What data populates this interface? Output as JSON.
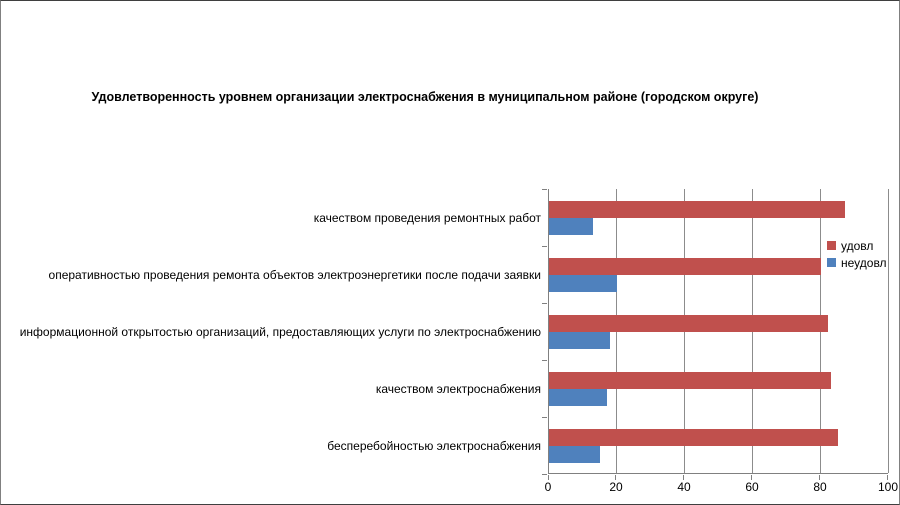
{
  "window": {
    "background": "#ffffff",
    "border_color": "#808080"
  },
  "chart_data": {
    "type": "bar",
    "orientation": "horizontal",
    "title": "Удовлетворенность уровнем организации электроснабжения в муниципальном районе (городском округе)",
    "categories": [
      "качеством проведения ремонтных работ",
      "оперативностью проведения ремонта объектов электроэнергетики после подачи заявки",
      "информационной открытостью организаций, предоставляющих услуги по электроснабжению",
      "качеством электроснабжения",
      "бесперебойностью электроснабжения"
    ],
    "series": [
      {
        "name": "удовл",
        "color": "#C0504D",
        "values": [
          87,
          80,
          82,
          83,
          85
        ]
      },
      {
        "name": "неудовл",
        "color": "#4F81BD",
        "values": [
          13,
          20,
          18,
          17,
          15
        ]
      }
    ],
    "xlim": [
      0,
      100
    ],
    "x_ticks": [
      0,
      20,
      40,
      60,
      80,
      100
    ],
    "grid": "vertical-only",
    "gridline_color": "#8C8C8C",
    "axis_color": "#808080",
    "legend_position": "right",
    "legend_entries": [
      "удовл",
      "неудовл"
    ]
  }
}
